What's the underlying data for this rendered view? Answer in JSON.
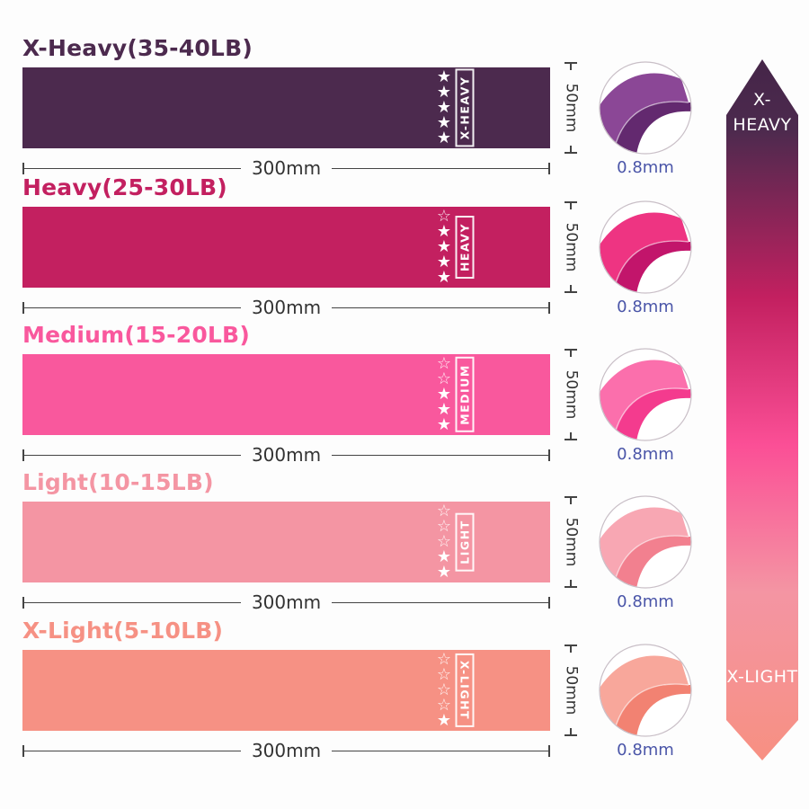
{
  "bands": [
    {
      "title": "X-Heavy(35-40LB)",
      "label": "X-HEAVY",
      "stars_filled": 5,
      "stars_total": 5,
      "color": "#4C2A4E",
      "fold_light": "#8B4796",
      "fold_dark": "#63296F",
      "length_label": "300mm",
      "width_label": "50mm",
      "thickness_label": "0.8mm",
      "label_direction": "up"
    },
    {
      "title": "Heavy(25-30LB)",
      "label": "HEAVY",
      "stars_filled": 4,
      "stars_total": 5,
      "color": "#C32060",
      "fold_light": "#EE3482",
      "fold_dark": "#C2156B",
      "length_label": "300mm",
      "width_label": "50mm",
      "thickness_label": "0.8mm",
      "label_direction": "up"
    },
    {
      "title": "Medium(15-20LB)",
      "label": "MEDIUM",
      "stars_filled": 3,
      "stars_total": 5,
      "color": "#F9589D",
      "fold_light": "#FB6FAC",
      "fold_dark": "#F43B8E",
      "length_label": "300mm",
      "width_label": "50mm",
      "thickness_label": "0.8mm",
      "label_direction": "up"
    },
    {
      "title": "Light(10-15LB)",
      "label": "LIGHT",
      "stars_filled": 2,
      "stars_total": 5,
      "color": "#F495A3",
      "fold_light": "#F8A7B3",
      "fold_dark": "#F2808F",
      "length_label": "300mm",
      "width_label": "50mm",
      "thickness_label": "0.8mm",
      "label_direction": "up"
    },
    {
      "title": "X-Light(5-10LB)",
      "label": "X-LIGHT",
      "stars_filled": 1,
      "stars_total": 5,
      "color": "#F69184",
      "fold_light": "#F8A79B",
      "fold_dark": "#F28272",
      "length_label": "300mm",
      "width_label": "50mm",
      "thickness_label": "0.8mm",
      "label_direction": "down"
    }
  ],
  "scale_arrow": {
    "top_label": "X-HEAVY",
    "bottom_label": "X-LIGHT",
    "gradient": [
      {
        "color": "#452548",
        "pos": 0
      },
      {
        "color": "#4C2A4E",
        "pos": 10
      },
      {
        "color": "#C32060",
        "pos": 34
      },
      {
        "color": "#FB4F96",
        "pos": 55
      },
      {
        "color": "#F495A3",
        "pos": 76
      },
      {
        "color": "#F79082",
        "pos": 100
      }
    ]
  },
  "colors": {
    "thickness_text": "#4A55A8",
    "dimension_lines": "#3a3a3a",
    "background": "#fdfdfd"
  }
}
